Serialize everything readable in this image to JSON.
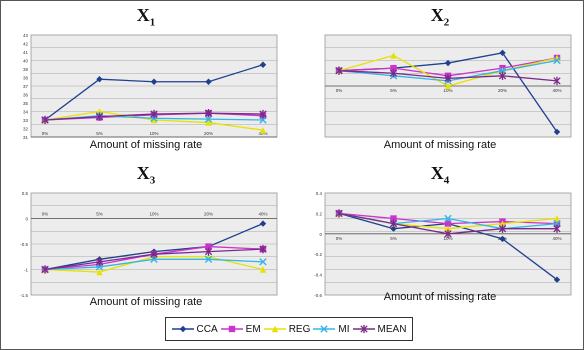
{
  "legend": [
    {
      "name": "CCA",
      "color": "#1f3f8f",
      "marker": "diamond"
    },
    {
      "name": "EM",
      "color": "#cc33cc",
      "marker": "square"
    },
    {
      "name": "REG",
      "color": "#e8e000",
      "marker": "triangle"
    },
    {
      "name": "MI",
      "color": "#33b5e5",
      "marker": "x"
    },
    {
      "name": "MEAN",
      "color": "#7a2a8a",
      "marker": "star"
    }
  ],
  "chart_data": [
    {
      "type": "line",
      "title_main": "X",
      "title_sub": "1",
      "xlabel": "Amount of missing rate",
      "categories": [
        "0%",
        "5%",
        "10%",
        "20%",
        "40%"
      ],
      "ylim": [
        31,
        43
      ],
      "yticks": [
        "31",
        "32",
        "33",
        "34",
        "35",
        "36",
        "37",
        "38",
        "39",
        "40",
        "41",
        "42",
        "43"
      ],
      "series": [
        {
          "name": "CCA",
          "values": [
            33,
            37.8,
            37.5,
            37.5,
            39.5
          ]
        },
        {
          "name": "EM",
          "values": [
            33,
            33.3,
            33.6,
            33.8,
            33.5
          ]
        },
        {
          "name": "REG",
          "values": [
            33,
            34,
            33,
            32.7,
            31.8
          ]
        },
        {
          "name": "MI",
          "values": [
            33,
            33.5,
            33.2,
            33.1,
            33
          ]
        },
        {
          "name": "MEAN",
          "values": [
            33,
            33.4,
            33.7,
            33.8,
            33.7
          ]
        }
      ]
    },
    {
      "type": "line",
      "title_main": "X",
      "title_sub": "2",
      "xlabel": "Amount of missing rate",
      "categories": [
        "0%",
        "5%",
        "10%",
        "20%",
        "40%"
      ],
      "ylim": [
        -1,
        1
      ],
      "yticks": [],
      "series": [
        {
          "name": "CCA",
          "values": [
            0.3,
            0.35,
            0.45,
            0.65,
            -0.9
          ]
        },
        {
          "name": "EM",
          "values": [
            0.3,
            0.35,
            0.2,
            0.35,
            0.55
          ]
        },
        {
          "name": "REG",
          "values": [
            0.3,
            0.6,
            0,
            0.3,
            0.55
          ]
        },
        {
          "name": "MI",
          "values": [
            0.3,
            0.2,
            0.1,
            0.3,
            0.5
          ]
        },
        {
          "name": "MEAN",
          "values": [
            0.3,
            0.25,
            0.15,
            0.2,
            0.1
          ]
        }
      ]
    },
    {
      "type": "line",
      "title_main": "X",
      "title_sub": "3",
      "xlabel": "Amount of missing rate",
      "categories": [
        "0%",
        "5%",
        "10%",
        "20%",
        "40%"
      ],
      "ylim": [
        -1.5,
        0.5
      ],
      "yticks": [
        "-1.5",
        "-1",
        "-0.5",
        "0",
        "0.5"
      ],
      "series": [
        {
          "name": "CCA",
          "values": [
            -1,
            -0.8,
            -0.65,
            -0.55,
            -0.1
          ]
        },
        {
          "name": "EM",
          "values": [
            -1,
            -0.9,
            -0.7,
            -0.55,
            -0.6
          ]
        },
        {
          "name": "REG",
          "values": [
            -1,
            -1.05,
            -0.75,
            -0.75,
            -1
          ]
        },
        {
          "name": "MI",
          "values": [
            -1,
            -0.95,
            -0.8,
            -0.8,
            -0.85
          ]
        },
        {
          "name": "MEAN",
          "values": [
            -1,
            -0.85,
            -0.7,
            -0.65,
            -0.6
          ]
        }
      ]
    },
    {
      "type": "line",
      "title_main": "X",
      "title_sub": "4",
      "xlabel": "Amount of missing rate",
      "categories": [
        "0%",
        "5%",
        "10%",
        "20%",
        "40%"
      ],
      "ylim": [
        -0.6,
        0.4
      ],
      "yticks": [
        "-0.6",
        "-0.4",
        "-0.2",
        "0",
        "0.2",
        "0.4"
      ],
      "series": [
        {
          "name": "CCA",
          "values": [
            0.2,
            0.05,
            0.1,
            -0.05,
            -0.45
          ]
        },
        {
          "name": "EM",
          "values": [
            0.2,
            0.15,
            0.1,
            0.12,
            0.1
          ]
        },
        {
          "name": "REG",
          "values": [
            0.2,
            0.1,
            0.05,
            0.1,
            0.15
          ]
        },
        {
          "name": "MI",
          "values": [
            0.2,
            0.1,
            0.15,
            0.05,
            0.1
          ]
        },
        {
          "name": "MEAN",
          "values": [
            0.2,
            0.1,
            0,
            0.05,
            0.05
          ]
        }
      ]
    }
  ]
}
